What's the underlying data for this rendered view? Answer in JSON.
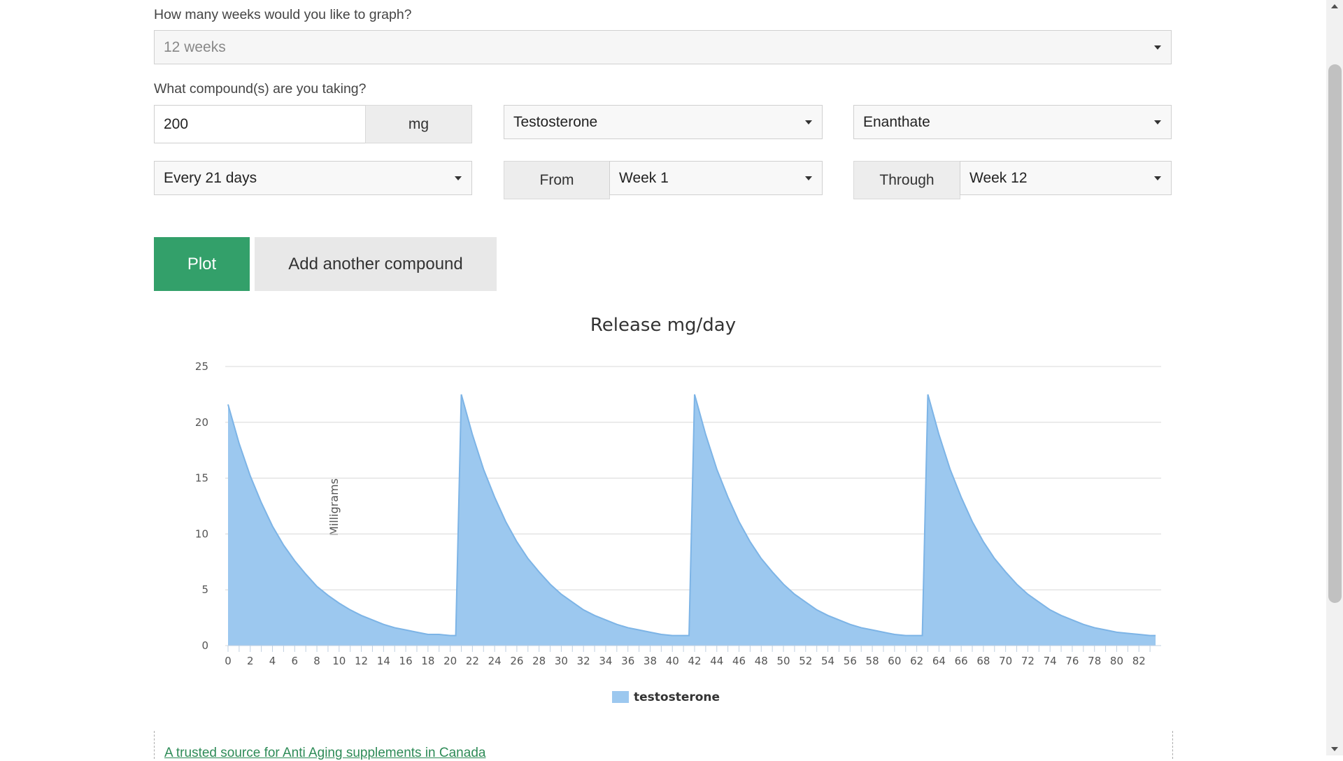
{
  "form": {
    "weeks_question": "How many weeks would you like to graph?",
    "weeks_value": "12 weeks",
    "compound_question": "What compound(s) are you taking?",
    "dose_value": "200",
    "dose_unit": "mg",
    "compound_value": "Testosterone",
    "ester_value": "Enanthate",
    "frequency_value": "Every 21 days",
    "from_label": "From",
    "from_value": "Week 1",
    "through_label": "Through",
    "through_value": "Week 12"
  },
  "buttons": {
    "plot": "Plot",
    "add_compound": "Add another compound"
  },
  "chart_data": {
    "type": "area",
    "title": "Release mg/day",
    "xlabel": "",
    "ylabel": "Milligrams",
    "xlim": [
      0,
      84
    ],
    "ylim": [
      0,
      25
    ],
    "yticks": [
      0,
      5,
      10,
      15,
      20,
      25
    ],
    "xtick_labels": [
      0,
      2,
      4,
      6,
      8,
      10,
      12,
      14,
      16,
      18,
      20,
      22,
      24,
      26,
      28,
      30,
      32,
      34,
      36,
      38,
      40,
      42,
      44,
      46,
      48,
      50,
      52,
      54,
      56,
      58,
      60,
      62,
      64,
      66,
      68,
      70,
      72,
      74,
      76,
      78,
      80,
      82
    ],
    "grid": true,
    "legend_position": "bottom",
    "colors": {
      "fill": "#9cc8ef",
      "stroke": "#7db4e6"
    },
    "series": [
      {
        "name": "testosterone",
        "x": [
          0,
          1,
          2,
          3,
          4,
          5,
          6,
          7,
          8,
          9,
          10,
          11,
          12,
          13,
          14,
          15,
          16,
          17,
          18,
          19,
          20,
          20.5,
          21,
          22,
          23,
          24,
          25,
          26,
          27,
          28,
          29,
          30,
          31,
          32,
          33,
          34,
          35,
          36,
          37,
          38,
          39,
          40,
          41,
          41.5,
          42,
          43,
          44,
          45,
          46,
          47,
          48,
          49,
          50,
          51,
          52,
          53,
          54,
          55,
          56,
          57,
          58,
          59,
          60,
          61,
          62,
          62.5,
          63,
          64,
          65,
          66,
          67,
          68,
          69,
          70,
          71,
          72,
          73,
          74,
          75,
          76,
          77,
          78,
          79,
          80,
          81,
          82,
          83,
          83.5
        ],
        "y": [
          21.6,
          18.1,
          15.2,
          12.8,
          10.7,
          9.0,
          7.6,
          6.4,
          5.3,
          4.5,
          3.8,
          3.2,
          2.7,
          2.3,
          1.9,
          1.6,
          1.4,
          1.2,
          1.0,
          1.0,
          0.9,
          0.9,
          22.5,
          18.9,
          15.8,
          13.3,
          11.1,
          9.3,
          7.8,
          6.6,
          5.5,
          4.6,
          3.9,
          3.2,
          2.7,
          2.3,
          1.9,
          1.6,
          1.4,
          1.2,
          1.0,
          0.9,
          0.9,
          0.9,
          22.5,
          18.9,
          15.8,
          13.3,
          11.1,
          9.3,
          7.8,
          6.6,
          5.5,
          4.6,
          3.9,
          3.2,
          2.7,
          2.3,
          1.9,
          1.6,
          1.4,
          1.2,
          1.0,
          0.9,
          0.9,
          0.9,
          22.5,
          18.9,
          15.8,
          13.3,
          11.1,
          9.3,
          7.8,
          6.6,
          5.5,
          4.6,
          3.9,
          3.2,
          2.7,
          2.3,
          1.9,
          1.6,
          1.4,
          1.2,
          1.1,
          1.0,
          0.9,
          0.9
        ]
      }
    ]
  },
  "footer": {
    "link_text": "A trusted source for Anti Aging supplements in Canada"
  }
}
